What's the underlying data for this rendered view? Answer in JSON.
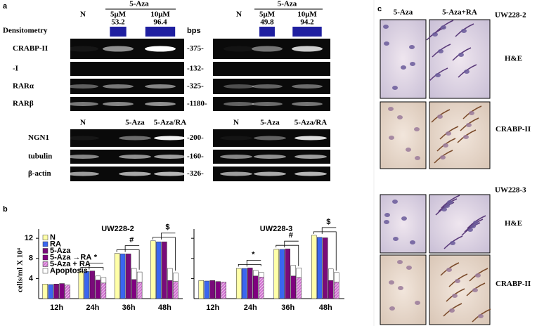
{
  "panel_a": {
    "label": "a",
    "top": {
      "densitometry_label": "Densitometry",
      "bps_label": "bps",
      "rows": [
        "CRABP-II",
        "-I",
        "RARα",
        "RARβ"
      ],
      "bps": [
        "-375-",
        "-132-",
        "-325-",
        "-1180-"
      ],
      "gels": [
        {
          "treatment": "5-Aza",
          "lanes": [
            "N",
            "5μM",
            "10μM"
          ],
          "densitometry": [
            53.2,
            96.4
          ]
        },
        {
          "treatment": "5-Aza",
          "lanes": [
            "N",
            "5μM",
            "10μM"
          ],
          "densitometry": [
            49.8,
            94.2
          ]
        }
      ]
    },
    "bottom": {
      "rows": [
        "NGN1",
        "tubulin",
        "β-actin"
      ],
      "bps": [
        "-200-",
        "-160-",
        "-326-"
      ],
      "gels": [
        {
          "lanes": [
            "N",
            "5-Aza",
            "5-Aza/RA"
          ]
        },
        {
          "lanes": [
            "N",
            "5-Aza",
            "5-Aza/RA"
          ]
        }
      ]
    }
  },
  "panel_b_label": "b",
  "chart_data": [
    {
      "type": "bar",
      "title": "UW228-2",
      "y_label": "cells/ml  X 10⁴",
      "categories": [
        "12h",
        "24h",
        "36h",
        "48h"
      ],
      "ylim": [
        0,
        13
      ],
      "yticks": [
        4,
        8,
        12
      ],
      "legend": "upper left",
      "series": [
        {
          "name": "N",
          "color": "#ffffa8",
          "values": [
            2.9,
            5.4,
            9.0,
            11.5
          ]
        },
        {
          "name": "RA",
          "color": "#3a66f0",
          "values": [
            2.8,
            5.4,
            8.9,
            11.3
          ]
        },
        {
          "name": "5-Aza",
          "color": "#7a0a7a",
          "values": [
            2.9,
            5.5,
            8.9,
            11.3
          ]
        },
        {
          "name": "5-Aza →RA",
          "color": "#800080",
          "values": [
            3.0,
            3.7,
            3.8,
            3.6
          ]
        },
        {
          "name": "5-Aza + RA",
          "color": "#c860c8",
          "hatch": true,
          "values": [
            2.7,
            3.1,
            3.3,
            3.4
          ]
        },
        {
          "name": "Apoptosis",
          "color": "#ffffff",
          "values": [
            [
              null,
              null
            ],
            [
              0.8,
              1.1
            ],
            [
              2.2,
              2.0
            ],
            [
              2.4,
              1.7
            ]
          ]
        }
      ],
      "annotations": [
        {
          "text": "*",
          "category": "24h"
        },
        {
          "text": "#",
          "category": "36h"
        },
        {
          "text": "$",
          "category": "48h"
        }
      ]
    },
    {
      "type": "bar",
      "title": "UW228-3",
      "categories": [
        "12h",
        "24h",
        "36h",
        "48h"
      ],
      "ylim": [
        0,
        13
      ],
      "yticks": [
        4,
        8,
        12
      ],
      "legend": "none",
      "series": [
        {
          "name": "N",
          "color": "#ffffa8",
          "values": [
            3.6,
            6.0,
            9.8,
            12.6
          ]
        },
        {
          "name": "RA",
          "color": "#3a66f0",
          "values": [
            3.5,
            6.0,
            9.8,
            12.2
          ]
        },
        {
          "name": "5-Aza",
          "color": "#7a0a7a",
          "values": [
            3.6,
            6.1,
            9.9,
            12.1
          ]
        },
        {
          "name": "5-Aza →RA",
          "color": "#800080",
          "values": [
            3.4,
            4.5,
            4.5,
            3.6
          ]
        },
        {
          "name": "5-Aza + RA",
          "color": "#c860c8",
          "hatch": true,
          "values": [
            3.3,
            4.3,
            4.2,
            3.3
          ]
        },
        {
          "name": "Apoptosis",
          "color": "#ffffff",
          "values": [
            [
              null,
              null
            ],
            [
              1.1,
              0.9
            ],
            [
              2.1,
              1.9
            ],
            [
              2.3,
              1.9
            ]
          ]
        }
      ],
      "annotations": [
        {
          "text": "*",
          "category": "24h"
        },
        {
          "text": "#",
          "category": "36h"
        },
        {
          "text": "$",
          "category": "48h"
        }
      ]
    }
  ],
  "panel_c": {
    "label": "c",
    "columns": [
      "5-Aza",
      "5-Aza+RA"
    ],
    "groups": [
      {
        "name": "UW228-2",
        "rows": [
          "H&E",
          "CRABP-II"
        ]
      },
      {
        "name": "UW228-3",
        "rows": [
          "H&E",
          "CRABP-II"
        ]
      }
    ]
  }
}
